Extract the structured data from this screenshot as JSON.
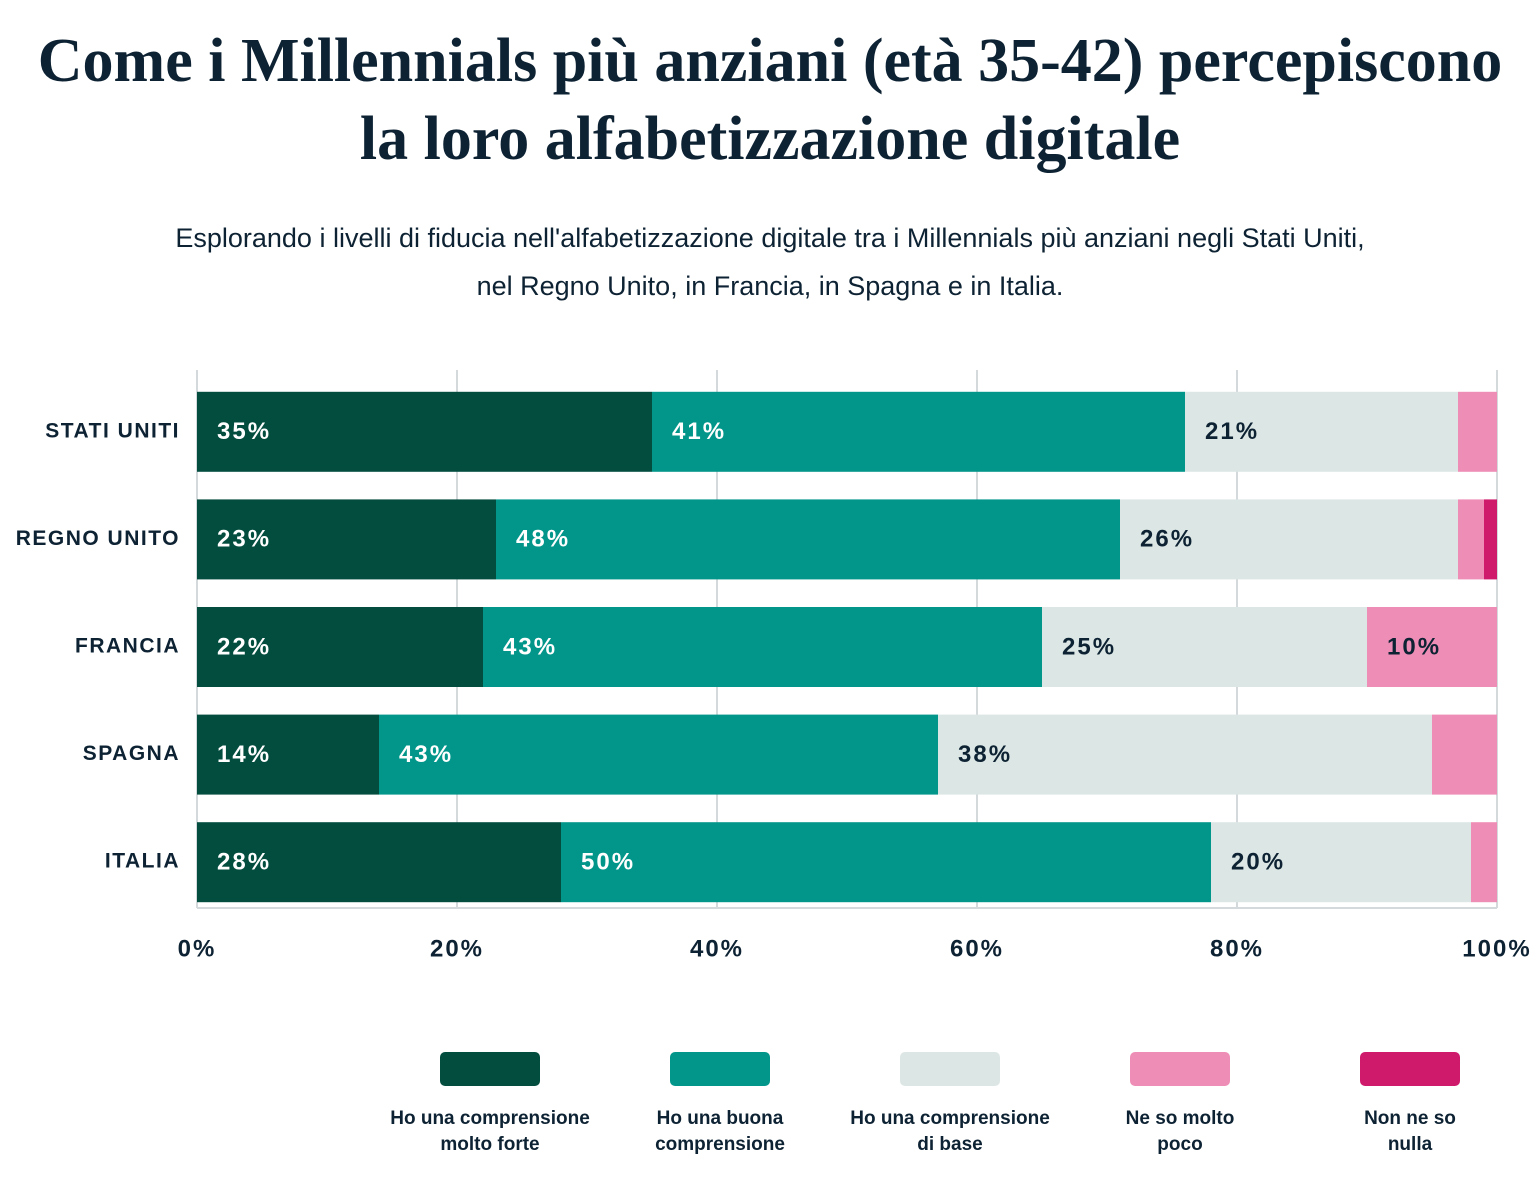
{
  "chart_data": {
    "type": "stacked-bar",
    "title": "Come i Millennials più anziani (età 35-42) percepiscono la loro alfabetizzazione digitale",
    "subtitle": "Esplorando i livelli di fiducia nell'alfabetizzazione digitale tra i Millennials più anziani negli Stati Uniti, nel Regno Unito, in Francia, in Spagna e in Italia.",
    "categories": [
      "STATI UNITI",
      "REGNO UNITO",
      "FRANCIA",
      "SPAGNA",
      "ITALIA"
    ],
    "series": [
      {
        "name": "Ho una comprensione molto forte",
        "color": "#034d3f",
        "values": [
          35,
          23,
          22,
          14,
          28
        ],
        "value_labels": [
          "35%",
          "23%",
          "22%",
          "14%",
          "28%"
        ]
      },
      {
        "name": "Ho una buona comprensione",
        "color": "#02968a",
        "values": [
          41,
          48,
          43,
          43,
          50
        ],
        "value_labels": [
          "41%",
          "48%",
          "43%",
          "43%",
          "50%"
        ]
      },
      {
        "name": "Ho una comprensione di base",
        "color": "#dce7e5",
        "values": [
          21,
          26,
          25,
          38,
          20
        ],
        "value_labels": [
          "21%",
          "26%",
          "25%",
          "38%",
          "20%"
        ]
      },
      {
        "name": "Ne so molto poco",
        "color": "#ee8db6",
        "values": [
          3,
          2,
          10,
          5,
          2
        ],
        "value_labels": [
          null,
          null,
          "10%",
          null,
          null
        ]
      },
      {
        "name": "Non ne so nulla",
        "color": "#cf1a6c",
        "values": [
          0,
          1,
          0,
          0,
          0
        ],
        "value_labels": [
          null,
          null,
          null,
          null,
          null
        ]
      }
    ],
    "xlim": [
      0,
      100
    ],
    "xticks": [
      {
        "value": 0,
        "label": "0%"
      },
      {
        "value": 20,
        "label": "20%"
      },
      {
        "value": 40,
        "label": "40%"
      },
      {
        "value": 60,
        "label": "60%"
      },
      {
        "value": 80,
        "label": "80%"
      },
      {
        "value": 100,
        "label": "100%"
      }
    ],
    "grid": true,
    "legend": "bottom"
  }
}
